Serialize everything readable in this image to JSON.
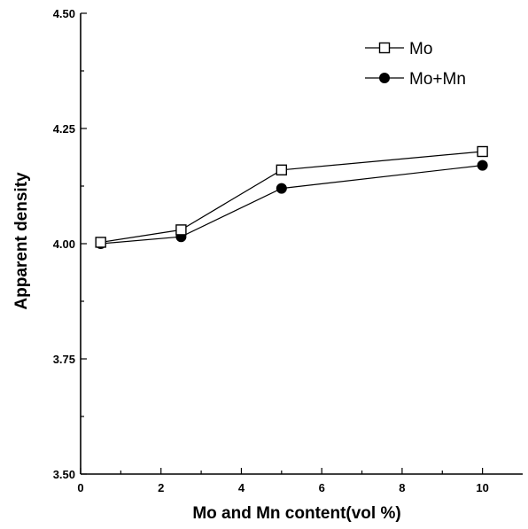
{
  "chart_data": {
    "type": "line",
    "xlabel": "Mo and Mn content(vol %)",
    "ylabel": "Apparent density",
    "xlim": [
      0,
      11
    ],
    "ylim": [
      3.5,
      4.5
    ],
    "x_ticks": [
      0,
      2,
      4,
      6,
      8,
      10
    ],
    "x_tick_labels": [
      "0",
      "2",
      "4",
      "6",
      "8",
      "10"
    ],
    "y_ticks": [
      3.5,
      3.75,
      4.0,
      4.25,
      4.5
    ],
    "y_tick_labels": [
      "3.50",
      "3.75",
      "4.00",
      "4.25",
      "4.50"
    ],
    "legend_position": "top-right",
    "grid": false,
    "series": [
      {
        "name": "Mo",
        "marker": "open-square",
        "x": [
          0.5,
          2.5,
          5,
          10
        ],
        "y": [
          4.003,
          4.03,
          4.16,
          4.2
        ]
      },
      {
        "name": "Mo+Mn",
        "marker": "filled-circle",
        "x": [
          0.5,
          2.5,
          5,
          10
        ],
        "y": [
          4.0,
          4.015,
          4.12,
          4.17
        ]
      }
    ]
  }
}
